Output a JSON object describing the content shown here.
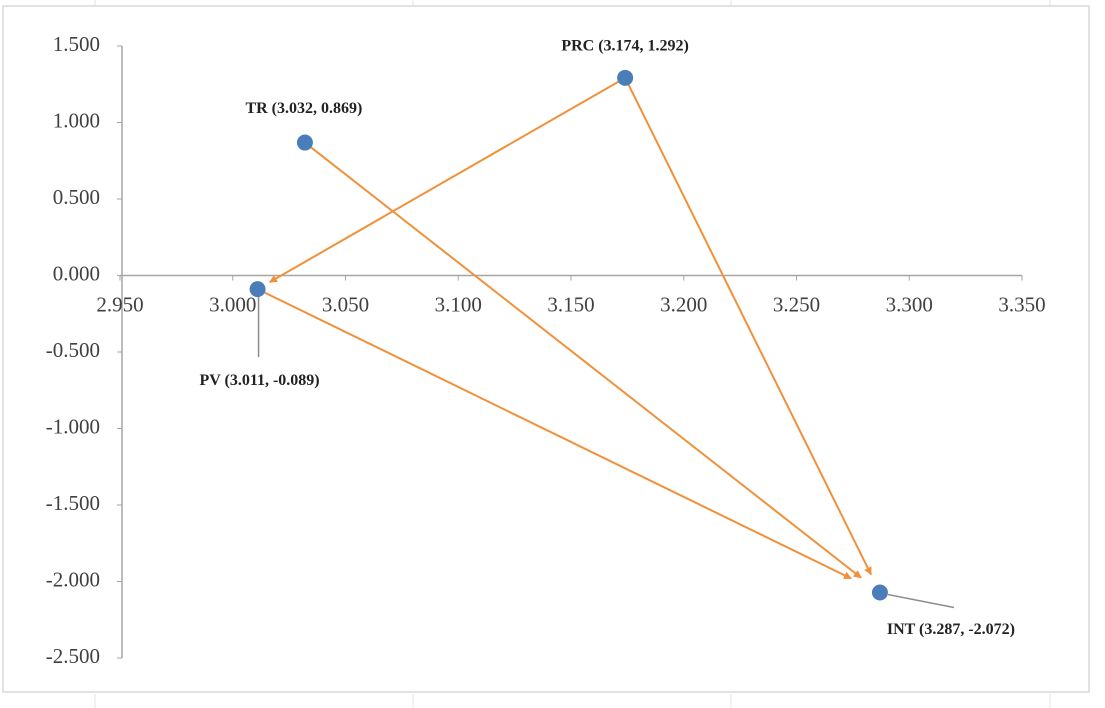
{
  "chart_data": {
    "type": "scatter",
    "series": [
      {
        "color": "#4a7ebb",
        "x": [
          3.032,
          3.174,
          3.011,
          3.287
        ],
        "values": [
          0.869,
          1.292,
          -0.089,
          -2.072
        ],
        "labels": [
          "TR (3.032, 0.869)",
          "PRC (3.174, 1.292)",
          "PV (3.011, -0.089)",
          "INT (3.287, -2.072)"
        ]
      }
    ],
    "arrow_color": "#f0913a",
    "xlim": [
      2.95,
      3.35
    ],
    "xticks": [
      {
        "value": 2.95,
        "label": "2.950"
      },
      {
        "value": 3.0,
        "label": "3.000"
      },
      {
        "value": 3.05,
        "label": "3.050"
      },
      {
        "value": 3.1,
        "label": "3.100"
      },
      {
        "value": 3.15,
        "label": "3.150"
      },
      {
        "value": 3.2,
        "label": "3.200"
      },
      {
        "value": 3.25,
        "label": "3.250"
      },
      {
        "value": 3.3,
        "label": "3.300"
      },
      {
        "value": 3.35,
        "label": "3.350"
      }
    ],
    "ylim": [
      -2.5,
      1.5
    ],
    "yticks": [
      {
        "value": 1.5,
        "label": "1.500"
      },
      {
        "value": 1.0,
        "label": "1.000"
      },
      {
        "value": 0.5,
        "label": "0.500"
      },
      {
        "value": 0.0,
        "label": "0.000"
      },
      {
        "value": -0.5,
        "label": "-0.500"
      },
      {
        "value": -1.0,
        "label": "-1.000"
      },
      {
        "value": -1.5,
        "label": "-1.500"
      },
      {
        "value": -2.0,
        "label": "-2.000"
      },
      {
        "value": -2.5,
        "label": "-2.500"
      }
    ]
  }
}
